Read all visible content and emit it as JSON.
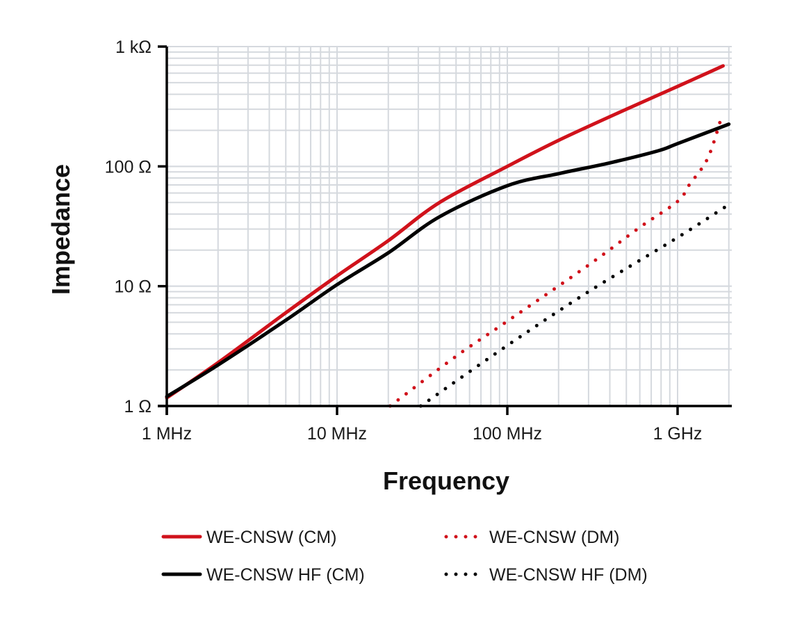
{
  "chart_data": {
    "type": "line",
    "xlabel": "Frequency",
    "ylabel": "Impedance",
    "x_scale": "log",
    "y_scale": "log",
    "x_unit": "MHz",
    "y_unit": "Ω",
    "xlim": [
      1,
      2000
    ],
    "ylim": [
      1,
      1000
    ],
    "grid": true,
    "legend_position": "bottom",
    "x_ticks": [
      {
        "value": 1,
        "label": "1 MHz"
      },
      {
        "value": 10,
        "label": "10 MHz"
      },
      {
        "value": 100,
        "label": "100 MHz"
      },
      {
        "value": 1000,
        "label": "1 GHz"
      }
    ],
    "y_ticks": [
      {
        "value": 1,
        "label": "1 Ω"
      },
      {
        "value": 10,
        "label": "10 Ω"
      },
      {
        "value": 100,
        "label": "100 Ω"
      },
      {
        "value": 1000,
        "label": "1 kΩ"
      }
    ],
    "series": [
      {
        "name": "WE-CNSW (CM)",
        "color": "#d0121b",
        "style": "solid",
        "x": [
          1,
          2,
          5,
          10,
          20,
          40,
          100,
          200,
          500,
          1000,
          1850
        ],
        "y": [
          1.17,
          2.3,
          6,
          12.2,
          24,
          50,
          100,
          165,
          300,
          465,
          690
        ]
      },
      {
        "name": "WE-CNSW HF (CM)",
        "color": "#000000",
        "style": "solid",
        "x": [
          1,
          2,
          5,
          10,
          20,
          40,
          100,
          200,
          400,
          770,
          1000,
          2000
        ],
        "y": [
          1.2,
          2.2,
          5.2,
          10.3,
          19,
          38,
          69,
          87,
          107,
          135,
          155,
          225
        ]
      },
      {
        "name": "WE-CNSW (DM)",
        "color": "#d0121b",
        "style": "dotted",
        "x": [
          20.5,
          50,
          100,
          300,
          600,
          1000,
          1170,
          1500,
          1800
        ],
        "y": [
          1,
          2.6,
          5.1,
          15,
          31,
          51,
          70,
          116,
          250
        ]
      },
      {
        "name": "WE-CNSW HF (DM)",
        "color": "#000000",
        "style": "dotted",
        "x": [
          31,
          100,
          300,
          1000,
          2000
        ],
        "y": [
          1,
          3.2,
          9,
          25.5,
          48
        ]
      }
    ]
  }
}
